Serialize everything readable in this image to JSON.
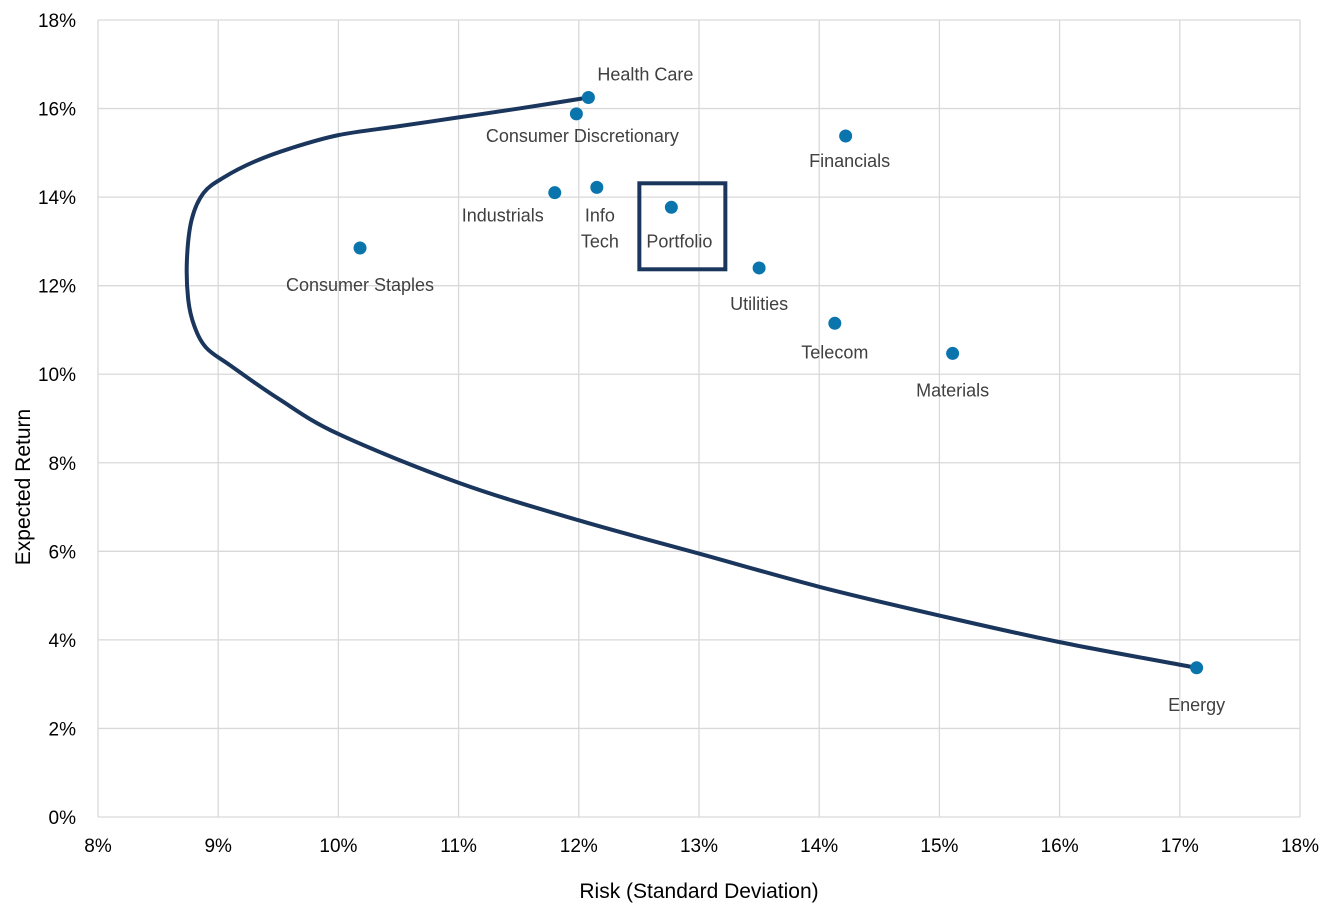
{
  "chart_data": {
    "type": "scatter",
    "title": "",
    "xlabel": "Risk (Standard Deviation)",
    "ylabel": "Expected Return",
    "xlim": [
      8,
      18
    ],
    "ylim": [
      0,
      18
    ],
    "x_ticks": [
      8,
      9,
      10,
      11,
      12,
      13,
      14,
      15,
      16,
      17,
      18
    ],
    "y_ticks": [
      0,
      2,
      4,
      6,
      8,
      10,
      12,
      14,
      16,
      18
    ],
    "x_tick_labels": [
      "8%",
      "9%",
      "10%",
      "11%",
      "12%",
      "13%",
      "14%",
      "15%",
      "16%",
      "17%",
      "18%"
    ],
    "y_tick_labels": [
      "0%",
      "2%",
      "4%",
      "6%",
      "8%",
      "10%",
      "12%",
      "14%",
      "16%",
      "18%"
    ],
    "grid": true,
    "colors": {
      "points": "#0a75ad",
      "frontier": "#1b365d",
      "highlight_box": "#1b365d",
      "grid": "#d9d9d9",
      "label": "#404040"
    },
    "points": [
      {
        "label": "Health Care",
        "x": 12.08,
        "y": 16.25
      },
      {
        "label": "Consumer Discretionary",
        "x": 11.98,
        "y": 15.88
      },
      {
        "label": "Financials",
        "x": 14.22,
        "y": 15.38
      },
      {
        "label": "Industrials",
        "x": 11.8,
        "y": 14.1
      },
      {
        "label": "Info\nTech",
        "x": 12.15,
        "y": 14.22
      },
      {
        "label": "Portfolio",
        "x": 12.77,
        "y": 13.77,
        "highlighted": true
      },
      {
        "label": "Consumer Staples",
        "x": 10.18,
        "y": 12.85
      },
      {
        "label": "Utilities",
        "x": 13.5,
        "y": 12.4
      },
      {
        "label": "Telecom",
        "x": 14.13,
        "y": 11.15
      },
      {
        "label": "Materials",
        "x": 15.11,
        "y": 10.47
      },
      {
        "label": "Energy",
        "x": 17.14,
        "y": 3.37
      }
    ],
    "frontier": {
      "x": [
        12.08,
        11.5,
        11.0,
        10.5,
        10.0,
        9.6,
        9.3,
        9.05,
        8.88,
        8.78,
        8.74,
        8.75,
        8.8,
        8.9,
        9.1,
        9.5,
        10.0,
        11.0,
        12.0,
        13.0,
        14.0,
        15.0,
        16.0,
        17.14
      ],
      "y": [
        16.25,
        16.0,
        15.8,
        15.6,
        15.4,
        15.1,
        14.8,
        14.45,
        14.1,
        13.5,
        12.6,
        11.7,
        11.1,
        10.6,
        10.2,
        9.45,
        8.65,
        7.55,
        6.7,
        5.95,
        5.2,
        4.55,
        3.95,
        3.37
      ]
    }
  }
}
